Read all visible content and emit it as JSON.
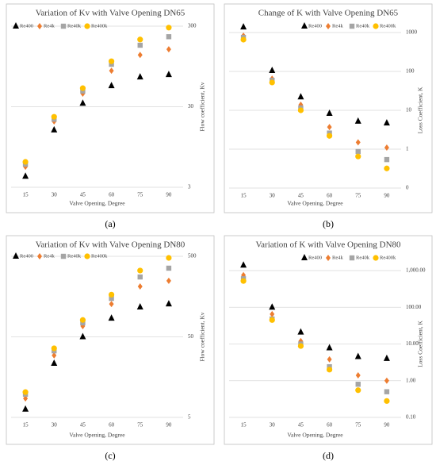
{
  "chart_data": [
    {
      "type": "scatter",
      "title": "Variation of Kv with Valve Opening DN65",
      "xlabel": "Valve Opening, Degree",
      "ylabel": "Flow coefficient, Kv",
      "caption": "(a)",
      "categories": [
        15,
        30,
        45,
        60,
        75,
        90
      ],
      "log": true,
      "grid": true,
      "legend": "top-left",
      "ylim": [
        3,
        300
      ],
      "yticks": [
        3,
        30,
        300
      ],
      "series": [
        {
          "name": "Re400",
          "color": "#000000",
          "marker": "triangle",
          "values": [
            4.1,
            15.4,
            33,
            54.6,
            70,
            75
          ]
        },
        {
          "name": "Re4k",
          "color": "#ed7d31",
          "marker": "diamond",
          "values": [
            5.4,
            19.7,
            43.6,
            84,
            132,
            155
          ]
        },
        {
          "name": "Re40k",
          "color": "#a5a5a5",
          "marker": "square",
          "values": [
            5.8,
            21,
            47,
            101,
            174,
            222
          ]
        },
        {
          "name": "Re400k",
          "color": "#ffc000",
          "marker": "circle",
          "values": [
            6.2,
            22.5,
            51,
            110,
            205,
            288
          ]
        }
      ]
    },
    {
      "type": "scatter",
      "title": "Change of K with Valve Opening DN65",
      "xlabel": "Valve Opening, Degree",
      "ylabel": "Loss Coefficient, K",
      "caption": "(b)",
      "categories": [
        15,
        30,
        45,
        60,
        75,
        90
      ],
      "log": true,
      "grid": true,
      "legend": "top-right",
      "ylim": [
        0.1,
        1000
      ],
      "yticks": [
        {
          "value": 0.1,
          "label": "0"
        },
        1,
        10,
        100,
        1000
      ],
      "series": [
        {
          "name": "Re400",
          "color": "#000000",
          "marker": "triangle",
          "values": [
            1380,
            105,
            22,
            8.3,
            5.2,
            4.7
          ]
        },
        {
          "name": "Re4k",
          "color": "#ed7d31",
          "marker": "diamond",
          "values": [
            830,
            65,
            13.9,
            3.7,
            1.5,
            1.1
          ]
        },
        {
          "name": "Re40k",
          "color": "#a5a5a5",
          "marker": "square",
          "values": [
            750,
            59,
            11.5,
            2.6,
            0.87,
            0.54
          ]
        },
        {
          "name": "Re400k",
          "color": "#ffc000",
          "marker": "circle",
          "values": [
            655,
            52,
            10,
            2.2,
            0.65,
            0.32
          ]
        }
      ]
    },
    {
      "type": "scatter",
      "title": "Variation of Kv with Valve Opening DN80",
      "xlabel": "Valve Opening, Degree",
      "ylabel": "Flow coefficient, Kv",
      "caption": "(c)",
      "categories": [
        15,
        30,
        45,
        60,
        75,
        90
      ],
      "log": true,
      "grid": true,
      "legend": "top-left",
      "ylim": [
        5,
        500
      ],
      "yticks": [
        5,
        50,
        500
      ],
      "series": [
        {
          "name": "Re400",
          "color": "#000000",
          "marker": "triangle",
          "values": [
            6.3,
            23.4,
            50,
            85,
            117,
            128
          ]
        },
        {
          "name": "Re4k",
          "color": "#ed7d31",
          "marker": "diamond",
          "values": [
            8.6,
            29.4,
            68,
            128,
            211,
            248
          ]
        },
        {
          "name": "Re40k",
          "color": "#a5a5a5",
          "marker": "square",
          "values": [
            9.7,
            33.5,
            74.6,
            150,
            277,
            356
          ]
        },
        {
          "name": "Re400k",
          "color": "#ffc000",
          "marker": "circle",
          "values": [
            10.3,
            36,
            81,
            167,
            333,
            478
          ]
        }
      ]
    },
    {
      "type": "scatter",
      "title": "Variation of K with Valve Opening DN80",
      "xlabel": "Valve Opening, Degree",
      "ylabel": "Loss Coefficient, K",
      "caption": "(d)",
      "categories": [
        15,
        30,
        45,
        60,
        75,
        90
      ],
      "log": true,
      "grid": true,
      "legend": "top-right",
      "ylim": [
        0.1,
        1000
      ],
      "yticks": [
        {
          "value": 0.1,
          "label": "0.10"
        },
        {
          "value": 1,
          "label": "1.00"
        },
        {
          "value": 10,
          "label": "10.00"
        },
        {
          "value": 100,
          "label": "100.00"
        },
        {
          "value": 1000,
          "label": "1,000.00"
        }
      ],
      "series": [
        {
          "name": "Re400",
          "color": "#000000",
          "marker": "triangle",
          "values": [
            1400,
            100,
            21,
            7.8,
            4.5,
            4
          ]
        },
        {
          "name": "Re4k",
          "color": "#ed7d31",
          "marker": "diamond",
          "values": [
            750,
            65,
            12,
            3.8,
            1.4,
            1
          ]
        },
        {
          "name": "Re40k",
          "color": "#a5a5a5",
          "marker": "square",
          "values": [
            600,
            48,
            10,
            2.4,
            0.8,
            0.5
          ]
        },
        {
          "name": "Re400k",
          "color": "#ffc000",
          "marker": "circle",
          "values": [
            520,
            45,
            8.8,
            2,
            0.55,
            0.28
          ]
        }
      ]
    }
  ]
}
